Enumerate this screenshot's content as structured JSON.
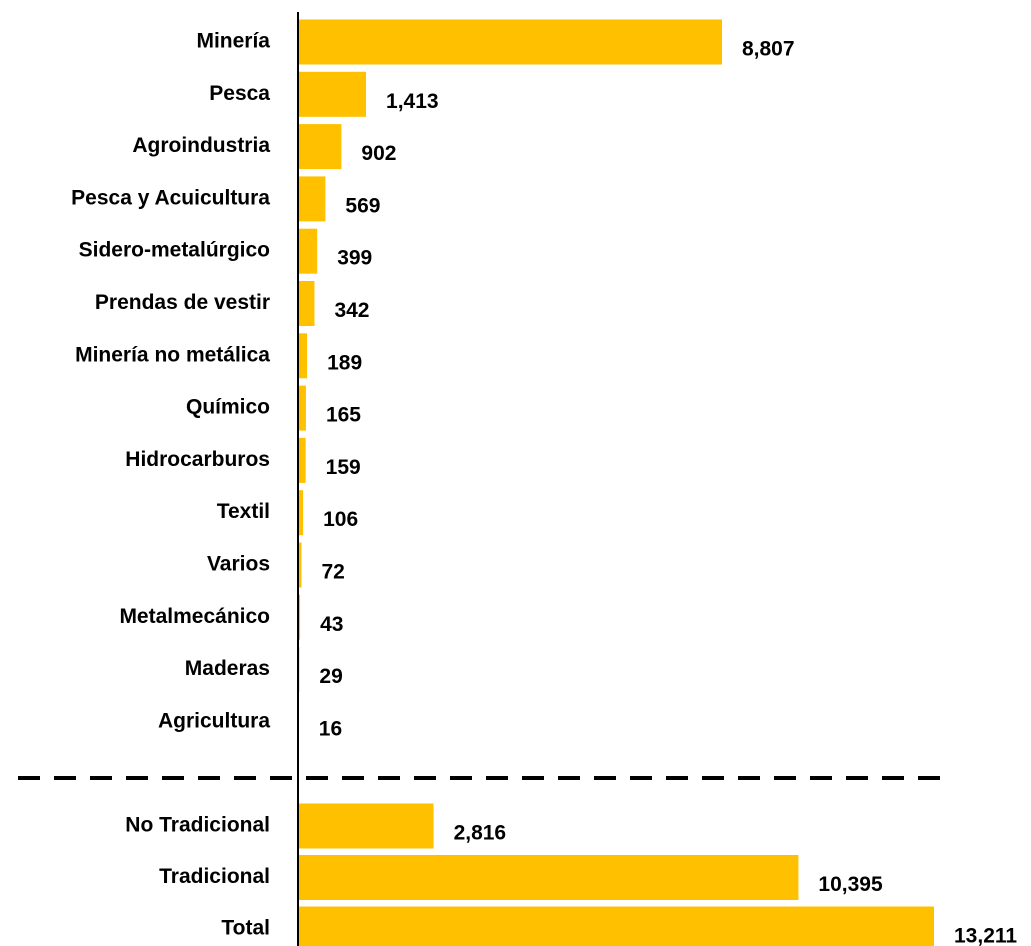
{
  "chart_data": {
    "type": "bar",
    "orientation": "horizontal",
    "categories": [
      "Minería",
      "Pesca",
      "Agroindustria",
      "Pesca y Acuicultura",
      "Sidero-metalúrgico",
      "Prendas de vestir",
      "Minería no metálica",
      "Químico",
      "Hidrocarburos",
      "Textil",
      "Varios",
      "Metalmecánico",
      "Maderas",
      "Agricultura",
      "No Tradicional",
      "Tradicional",
      "Total"
    ],
    "values": [
      8807,
      1413,
      902,
      569,
      399,
      342,
      189,
      165,
      159,
      106,
      72,
      43,
      29,
      16,
      2816,
      10395,
      13211
    ],
    "value_labels": [
      "8,807",
      "1,413",
      "902",
      "569",
      "399",
      "342",
      "189",
      "165",
      "159",
      "106",
      "72",
      "43",
      "29",
      "16",
      "2,816",
      "10,395",
      "13,211"
    ],
    "color": "#ffc000"
  }
}
